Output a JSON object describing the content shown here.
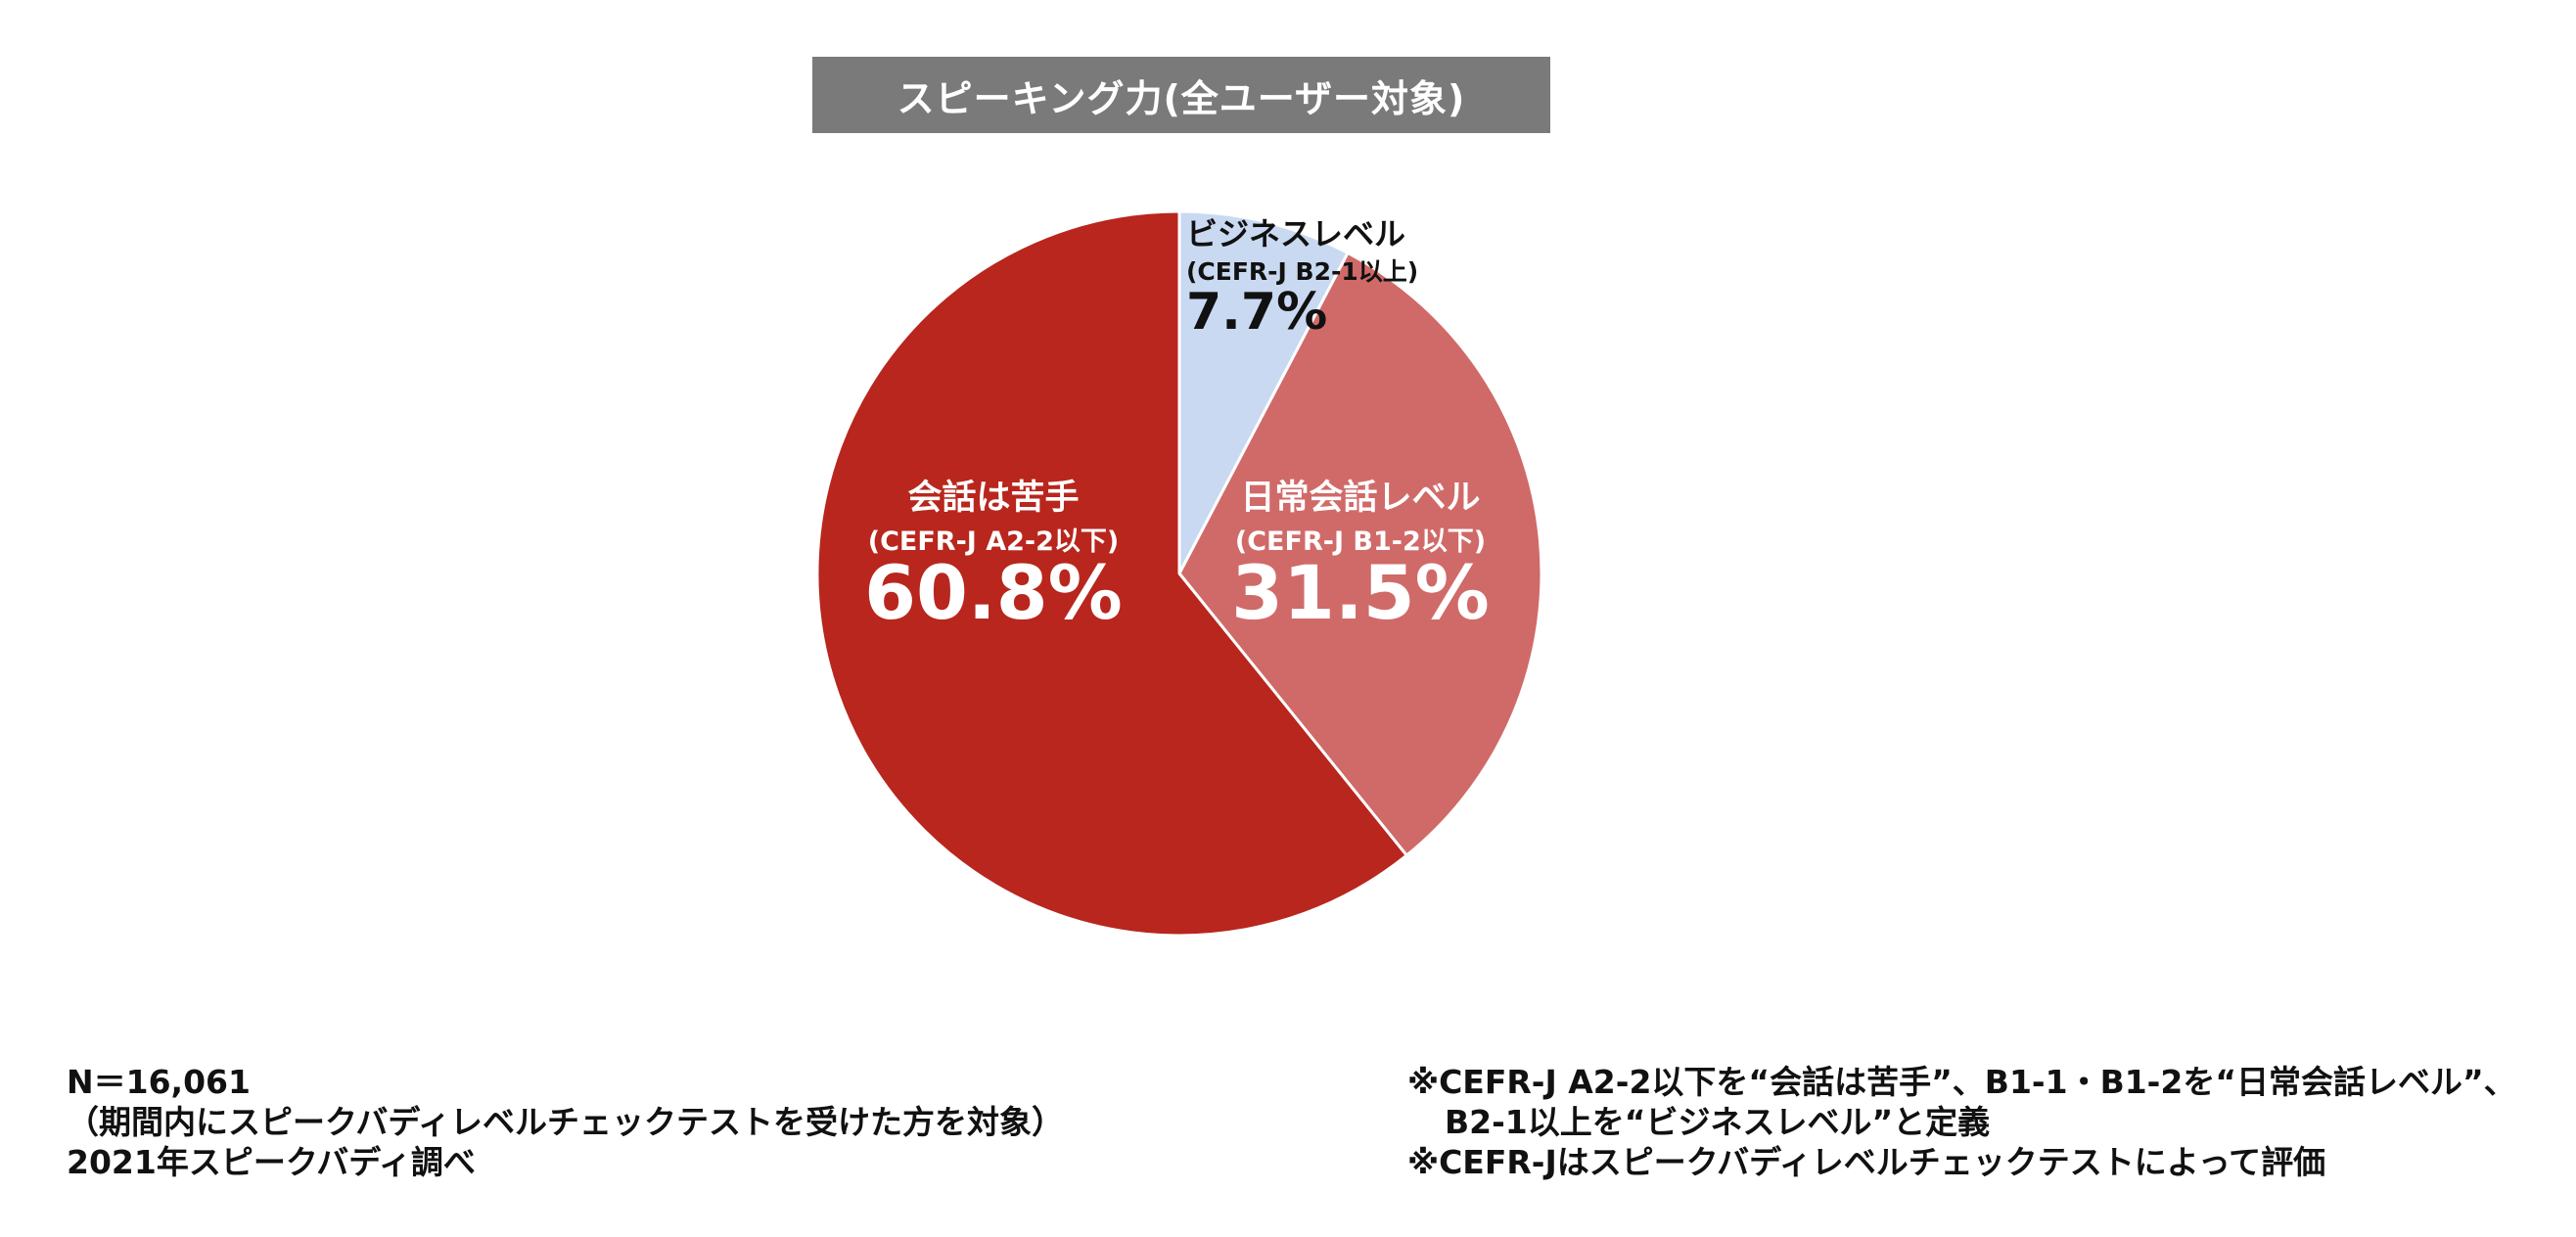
{
  "chart_data": {
    "type": "pie",
    "title": "スピーキング力(全ユーザー対象)",
    "slices": [
      {
        "name": "ビジネスレベル",
        "sublabel": "(CEFR-J B2-1以上)",
        "value": 7.7,
        "value_label": "7.7%",
        "color": "#c9d9f2",
        "text_color": "#111111"
      },
      {
        "name": "日常会話レベル",
        "sublabel": "(CEFR-J B1-2以下)",
        "value": 31.5,
        "value_label": "31.5%",
        "color": "#d06a68",
        "text_color": "#ffffff"
      },
      {
        "name": "会話は苦手",
        "sublabel": "(CEFR-J A2-2以下)",
        "value": 60.8,
        "value_label": "60.8%",
        "color": "#b8261d",
        "text_color": "#ffffff"
      }
    ],
    "start_angle": "12 o'clock",
    "direction": "clockwise",
    "legend": "none"
  },
  "footer": {
    "left": [
      "N＝16,061",
      "（期間内にスピークバディレベルチェックテストを受けた方を対象）",
      "2021年スピークバディ調べ"
    ],
    "right": [
      "※CEFR-J A2-2以下を“会話は苦手”、B1-1・B1-2を“日常会話レベル”、",
      "B2-1以上を“ビジネスレベル”と定義",
      "※CEFR-Jはスピークバディレベルチェックテストによって評価"
    ]
  }
}
